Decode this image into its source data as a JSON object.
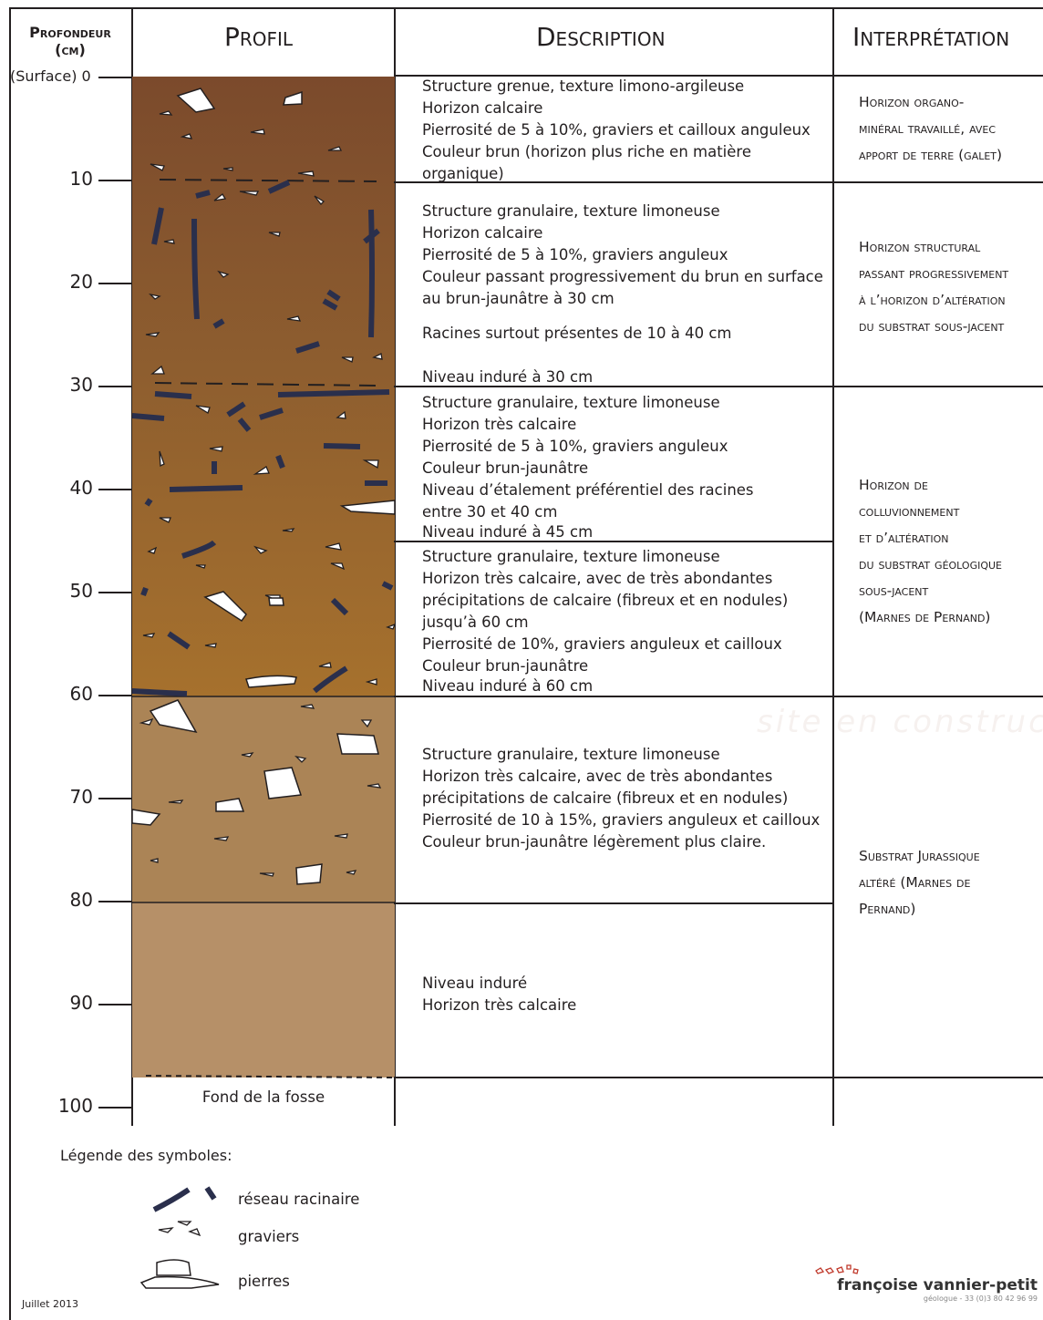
{
  "headers": {
    "depth_line1": "Profondeur",
    "depth_line2": "(cm)",
    "profile": "Profil",
    "description": "Description",
    "interpretation": "Interprétation"
  },
  "depth_axis": {
    "surface_label": "(Surface) 0",
    "ticks": [
      "10",
      "20",
      "30",
      "40",
      "50",
      "60",
      "70",
      "80",
      "90",
      "100"
    ]
  },
  "descriptions": [
    "Structure grenue, texture limono-argileuse\nHorizon calcaire\nPierrosité de 5 à 10%, graviers et cailloux anguleux\nCouleur brun (horizon plus riche en matière\norganique)",
    "Structure granulaire, texture limoneuse\nHorizon calcaire\nPierrosité de 5 à 10%, graviers anguleux\nCouleur passant progressivement du brun en surface\nau brun-jaunâtre à 30 cm",
    "Racines surtout présentes de 10 à 40 cm",
    "Niveau induré à 30 cm",
    "Structure granulaire, texture limoneuse\nHorizon très calcaire\nPierrosité de 5 à 10%, graviers anguleux\nCouleur brun-jaunâtre\nNiveau d’étalement préférentiel des racines\nentre 30 et 40 cm",
    "Niveau induré à 45 cm",
    "Structure granulaire, texture limoneuse\nHorizon très calcaire, avec de très abondantes\nprécipitations de calcaire (fibreux et en nodules)\njusqu’à 60 cm\nPierrosité de 10%, graviers anguleux et cailloux\nCouleur brun-jaunâtre",
    "Niveau induré à 60 cm",
    "Structure granulaire, texture limoneuse\nHorizon très calcaire, avec de très abondantes\nprécipitations de calcaire (fibreux et en nodules)\nPierrosité de 10 à 15%, graviers anguleux et cailloux\nCouleur brun-jaunâtre légèrement plus claire.",
    "Niveau induré\nHorizon très calcaire"
  ],
  "interpretations": [
    "Horizon organo-\nminéral travaillé, avec\napport de terre (galet)",
    "Horizon structural\npassant progressivement\nà l’horizon d’altération\ndu substrat sous-jacent",
    "Horizon de\ncolluvionnement\net d’altération\ndu substrat géologique\nsous-jacent\n(Marnes de Pernand)",
    "Substrat Jurassique\naltéré (Marnes de\nPernand)"
  ],
  "profile_bottom": "Fond de la fosse",
  "legend": {
    "title": "Légende des symboles:",
    "roots": "réseau racinaire",
    "gravels": "graviers",
    "stones": "pierres"
  },
  "footer": {
    "date": "Juillet 2013",
    "brand_name": "françoise vannier-petit",
    "brand_sub": "géologue - 33 (0)3 80 42 96 99"
  },
  "watermark": "site en construc",
  "colors": {
    "horizon_top": "#7b4a2c",
    "horizon_mid": "#93662f",
    "horizon_lower": "#a6712d",
    "substrate": "#ab8456",
    "substrate_bottom": "#b69068",
    "roots": "#2a2f4c"
  }
}
